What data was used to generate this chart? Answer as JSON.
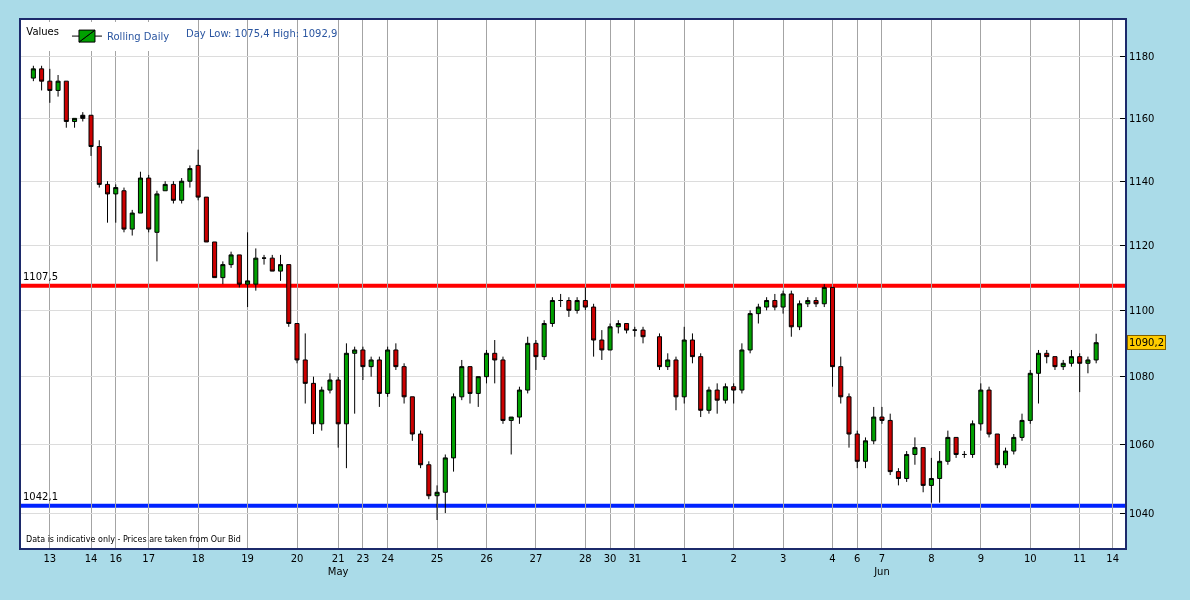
{
  "chart_data": {
    "type": "candlestick",
    "categories": [
      null,
      null,
      null,
      "13",
      null,
      null,
      null,
      null,
      "14",
      null,
      null,
      "16",
      null,
      null,
      null,
      "17",
      null,
      null,
      null,
      null,
      null,
      "18",
      null,
      null,
      null,
      null,
      null,
      "19",
      null,
      null,
      null,
      null,
      null,
      "20",
      null,
      null,
      null,
      null,
      "21\nMay",
      null,
      null,
      "23",
      null,
      null,
      "24",
      null,
      null,
      null,
      null,
      null,
      "25",
      null,
      null,
      null,
      null,
      null,
      "26",
      null,
      null,
      null,
      null,
      null,
      "27",
      null,
      null,
      null,
      null,
      null,
      "28",
      null,
      null,
      "30",
      null,
      null,
      "31",
      null,
      null,
      null,
      null,
      null,
      "1",
      null,
      null,
      null,
      null,
      null,
      "2",
      null,
      null,
      null,
      null,
      null,
      "3",
      null,
      null,
      null,
      null,
      null,
      "4",
      null,
      null,
      "6",
      null,
      null,
      "7\nJun",
      null,
      null,
      null,
      null,
      null,
      "8",
      null,
      null,
      null,
      null,
      null,
      "9",
      null,
      null,
      null,
      null,
      null,
      "10",
      null,
      null,
      null,
      null,
      null,
      "11",
      null,
      null,
      null,
      "14",
      null
    ],
    "ylim": [
      1030,
      1192
    ],
    "yticks": [
      1040,
      1060,
      1080,
      1100,
      1120,
      1140,
      1160,
      1180
    ],
    "log": "y",
    "grid": true,
    "legend": "top left",
    "legend_title": "Values",
    "series": [
      {
        "name": "Rolling Daily",
        "ohlc": [
          null,
          [
            1173,
            1177,
            1172,
            1176
          ],
          [
            1176,
            1177,
            1169,
            1172
          ],
          [
            1172,
            1176,
            1165,
            1169
          ],
          [
            1169,
            1174,
            1167,
            1172
          ],
          [
            1172,
            1172,
            1157,
            1159
          ],
          [
            1159,
            1160,
            1157,
            1160
          ],
          [
            1160,
            1162,
            1159,
            1161
          ],
          [
            1161,
            1161,
            1148,
            1151
          ],
          [
            1151,
            1153,
            1138,
            1139
          ],
          [
            1139,
            1140,
            1127,
            1136
          ],
          [
            1136,
            1139,
            1127,
            1138
          ],
          [
            1137,
            1138,
            1124,
            1125
          ],
          [
            1125,
            1131,
            1123,
            1130
          ],
          [
            1130,
            1143,
            1130,
            1141
          ],
          [
            1141,
            1142,
            1124,
            1125
          ],
          [
            1124,
            1137,
            1115,
            1136
          ],
          [
            1137,
            1140,
            1137,
            1139
          ],
          [
            1139,
            1140,
            1133,
            1134
          ],
          [
            1134,
            1141,
            1133,
            1140
          ],
          [
            1140,
            1145,
            1138,
            1144
          ],
          [
            1145,
            1150,
            1134,
            1135
          ],
          [
            1135,
            1135,
            1121,
            1121
          ],
          [
            1121,
            1121,
            1110,
            1110
          ],
          [
            1110,
            1115,
            1108,
            1114
          ],
          [
            1114,
            1118,
            1113,
            1117
          ],
          [
            1117,
            1117,
            1107,
            1108
          ],
          [
            1108,
            1124,
            1101,
            1109
          ],
          [
            1108,
            1119,
            1106,
            1116
          ],
          [
            1116,
            1117,
            1114,
            1116
          ],
          [
            1116,
            1117,
            1112,
            1112
          ],
          [
            1112,
            1117,
            1109,
            1114
          ],
          [
            1114,
            1114,
            1095,
            1096
          ],
          [
            1096,
            1096,
            1084,
            1085
          ],
          [
            1085,
            1093,
            1072,
            1078
          ],
          [
            1078,
            1080,
            1063,
            1066
          ],
          [
            1066,
            1077,
            1064,
            1076
          ],
          [
            1076,
            1081,
            1075,
            1079
          ],
          [
            1079,
            1080,
            1059,
            1066
          ],
          [
            1066,
            1090,
            1053,
            1087
          ],
          [
            1087,
            1089,
            1069,
            1088
          ],
          [
            1088,
            1089,
            1079,
            1083
          ],
          [
            1083,
            1086,
            1080,
            1085
          ],
          [
            1085,
            1086,
            1071,
            1075
          ],
          [
            1075,
            1089,
            1074,
            1088
          ],
          [
            1088,
            1090,
            1082,
            1083
          ],
          [
            1083,
            1084,
            1072,
            1074
          ],
          [
            1074,
            1074,
            1061,
            1063
          ],
          [
            1063,
            1064,
            1053,
            1054
          ],
          [
            1054,
            1055,
            1044,
            1045
          ],
          [
            1045,
            1048,
            1038,
            1046
          ],
          [
            1046,
            1057,
            1040,
            1056
          ],
          [
            1056,
            1075,
            1052,
            1074
          ],
          [
            1074,
            1085,
            1073,
            1083
          ],
          [
            1083,
            1083,
            1072,
            1075
          ],
          [
            1075,
            1080,
            1071,
            1080
          ],
          [
            1080,
            1088,
            1078,
            1087
          ],
          [
            1087,
            1091,
            1078,
            1085
          ],
          [
            1085,
            1086,
            1066,
            1067
          ],
          [
            1067,
            1068,
            1057,
            1068
          ],
          [
            1068,
            1077,
            1066,
            1076
          ],
          [
            1076,
            1092,
            1075,
            1090
          ],
          [
            1090,
            1091,
            1082,
            1086
          ],
          [
            1086,
            1097,
            1085,
            1096
          ],
          [
            1096,
            1104,
            1095,
            1103
          ],
          [
            1103,
            1105,
            1101,
            1103
          ],
          [
            1103,
            1104,
            1098,
            1100
          ],
          [
            1100,
            1104,
            1099,
            1103
          ],
          [
            1103,
            1107,
            1100,
            1101
          ],
          [
            1101,
            1102,
            1086,
            1091
          ],
          [
            1091,
            1094,
            1085,
            1088
          ],
          [
            1088,
            1096,
            1088,
            1095
          ],
          [
            1095,
            1097,
            1093,
            1096
          ],
          [
            1096,
            1096,
            1093,
            1094
          ],
          [
            1094,
            1095,
            1092,
            1094
          ],
          [
            1094,
            1095,
            1090,
            1092
          ],
          null,
          [
            1092,
            1093,
            1082,
            1083
          ],
          [
            1083,
            1087,
            1082,
            1085
          ],
          [
            1085,
            1086,
            1070,
            1074
          ],
          [
            1074,
            1095,
            1072,
            1091
          ],
          [
            1091,
            1093,
            1084,
            1086
          ],
          [
            1086,
            1087,
            1068,
            1070
          ],
          [
            1070,
            1077,
            1069,
            1076
          ],
          [
            1076,
            1078,
            1069,
            1073
          ],
          [
            1073,
            1078,
            1072,
            1077
          ],
          [
            1077,
            1078,
            1072,
            1076
          ],
          [
            1076,
            1090,
            1075,
            1088
          ],
          [
            1088,
            1100,
            1087,
            1099
          ],
          [
            1099,
            1102,
            1096,
            1101
          ],
          [
            1101,
            1104,
            1100,
            1103
          ],
          [
            1103,
            1105,
            1100,
            1101
          ],
          [
            1101,
            1106,
            1099,
            1105
          ],
          [
            1105,
            1106,
            1092,
            1095
          ],
          [
            1095,
            1103,
            1094,
            1102
          ],
          [
            1102,
            1104,
            1101,
            1103
          ],
          [
            1103,
            1104,
            1101,
            1102
          ],
          [
            1102,
            1108,
            1101,
            1107
          ],
          [
            1107,
            1107,
            1077,
            1083
          ],
          [
            1083,
            1086,
            1072,
            1074
          ],
          [
            1074,
            1075,
            1059,
            1063
          ],
          [
            1063,
            1064,
            1053,
            1055
          ],
          [
            1055,
            1062,
            1053,
            1061
          ],
          [
            1061,
            1071,
            1060,
            1068
          ],
          [
            1068,
            1071,
            1066,
            1067
          ],
          [
            1067,
            1069,
            1051,
            1052
          ],
          [
            1052,
            1053,
            1048,
            1050
          ],
          [
            1050,
            1058,
            1049,
            1057
          ],
          [
            1057,
            1062,
            1054,
            1059
          ],
          [
            1059,
            1059,
            1046,
            1048
          ],
          [
            1048,
            1056,
            1043,
            1050
          ],
          [
            1050,
            1058,
            1043,
            1055
          ],
          [
            1055,
            1064,
            1054,
            1062
          ],
          [
            1062,
            1062,
            1056,
            1057
          ],
          [
            1057,
            1058,
            1056,
            1057
          ],
          [
            1057,
            1067,
            1056,
            1066
          ],
          [
            1066,
            1078,
            1064,
            1076
          ],
          [
            1076,
            1077,
            1062,
            1063
          ],
          [
            1063,
            1063,
            1053,
            1054
          ],
          [
            1054,
            1059,
            1053,
            1058
          ],
          [
            1058,
            1063,
            1057,
            1062
          ],
          [
            1062,
            1069,
            1061,
            1067
          ],
          [
            1067,
            1082,
            1066,
            1081
          ],
          [
            1081,
            1088,
            1072,
            1087
          ],
          [
            1087,
            1088,
            1084,
            1086
          ],
          [
            1086,
            1086,
            1082,
            1083
          ],
          [
            1083,
            1085,
            1082,
            1084
          ],
          [
            1084,
            1088,
            1083,
            1086
          ],
          [
            1086,
            1087,
            1075.4,
            1084
          ],
          [
            1084,
            1086,
            1081,
            1085
          ],
          [
            1085,
            1092.9,
            1084,
            1090.2
          ],
          null,
          null,
          null
        ],
        "colors": [
          null,
          "#00a000",
          "#cc0000",
          "#cc0000",
          "#00a000",
          "#cc0000",
          "#00a000",
          "#000000",
          "#cc0000",
          "#cc0000",
          "#cc0000",
          "#00a000",
          "#cc0000",
          "#00a000",
          "#00a000",
          "#cc0000",
          "#00a000",
          "#00a000",
          "#cc0000",
          "#00a000",
          "#00a000",
          "#cc0000",
          "#cc0000",
          "#cc0000",
          "#00a000",
          "#00a000",
          "#cc0000",
          "#00a000",
          "#00a000",
          "#000000",
          "#cc0000",
          "#00a000",
          "#cc0000",
          "#cc0000",
          "#cc0000",
          "#cc0000",
          "#00a000",
          "#00a000",
          "#cc0000",
          "#00a000",
          "#00a000",
          "#cc0000",
          "#00a000",
          "#cc0000",
          "#00a000",
          "#cc0000",
          "#cc0000",
          "#cc0000",
          "#cc0000",
          "#cc0000",
          "#00a000",
          "#00a000",
          "#00a000",
          "#00a000",
          "#cc0000",
          "#00a000",
          "#00a000",
          "#cc0000",
          "#cc0000",
          "#00a000",
          "#00a000",
          "#00a000",
          "#cc0000",
          "#00a000",
          "#00a000",
          "#000000",
          "#cc0000",
          "#00a000",
          "#cc0000",
          "#cc0000",
          "#cc0000",
          "#00a000",
          "#00a000",
          "#cc0000",
          "#000000",
          "#cc0000",
          null,
          "#cc0000",
          "#00a000",
          "#cc0000",
          "#00a000",
          "#cc0000",
          "#cc0000",
          "#00a000",
          "#cc0000",
          "#00a000",
          "#cc0000",
          "#00a000",
          "#00a000",
          "#00a000",
          "#00a000",
          "#cc0000",
          "#00a000",
          "#cc0000",
          "#00a000",
          "#00a000",
          "#cc0000",
          "#00a000",
          "#cc0000",
          "#cc0000",
          "#cc0000",
          "#cc0000",
          "#00a000",
          "#00a000",
          "#cc0000",
          "#cc0000",
          "#cc0000",
          "#00a000",
          "#00a000",
          "#cc0000",
          "#00a000",
          "#00a000",
          "#00a000",
          "#cc0000",
          "#000000",
          "#00a000",
          "#00a000",
          "#cc0000",
          "#cc0000",
          "#00a000",
          "#00a000",
          "#00a000",
          "#00a000",
          "#00a000",
          "#cc0000",
          "#cc0000",
          "#00a000",
          "#00a000",
          "#cc0000",
          "#00a000",
          "#00a000",
          null,
          null,
          null
        ]
      }
    ],
    "ref_lines": [
      {
        "axis": "y",
        "value": 1107.5,
        "label": "1107,5",
        "color": "#ff0000"
      },
      {
        "axis": "y",
        "value": 1042.1,
        "label": "1042,1",
        "color": "#0022ff"
      }
    ],
    "annotations": [
      "Day Low: 1075,4 High: 1092,9",
      "Data is indicative only - Prices are taken from Our Bid",
      "1090,2"
    ]
  }
}
